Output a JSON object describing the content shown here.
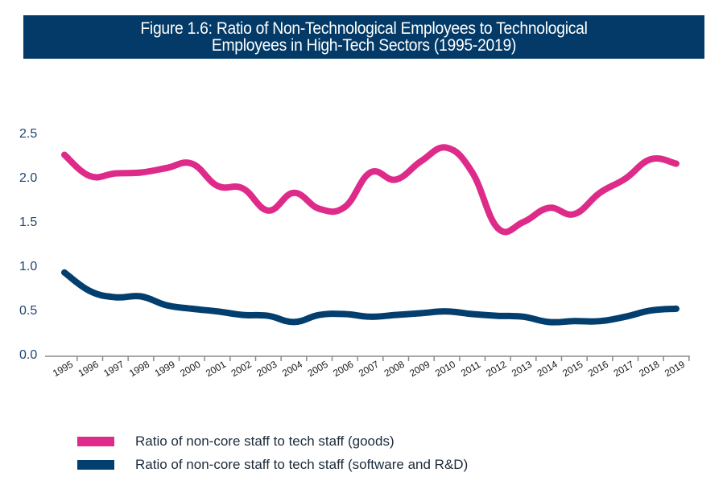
{
  "title": {
    "line1": "Figure 1.6: Ratio of Non-Technological Employees to Technological",
    "line2": "Employees in High-Tech Sectors (1995-2019)"
  },
  "colors": {
    "title_bg": "#033a67",
    "goods": "#de2b8a",
    "software": "#033f6e",
    "axis": "#8a8a8a",
    "tick_label": "#1f4570"
  },
  "legend": [
    {
      "label": "Ratio of non-core staff to tech staff (goods)",
      "color": "#de2b8a"
    },
    {
      "label": "Ratio of non-core staff to tech staff (software and R&D)",
      "color": "#033f6e"
    }
  ],
  "chart_data": {
    "type": "line",
    "title": "Figure 1.6: Ratio of Non-Technological Employees to Technological Employees in High-Tech Sectors (1995-2019)",
    "xlabel": "",
    "ylabel": "",
    "ylim": [
      0,
      2.5
    ],
    "yticks": [
      "0.0",
      "0.5",
      "1.0",
      "1.5",
      "2.0",
      "2.5"
    ],
    "grid": false,
    "legend_position": "bottom-left",
    "x": [
      "1995",
      "1996",
      "1997",
      "1998",
      "1999",
      "2000",
      "2001",
      "2002",
      "2003",
      "2004",
      "2005",
      "2006",
      "2007",
      "2008",
      "2009",
      "2010",
      "2011",
      "2012",
      "2013",
      "2014",
      "2015",
      "2016",
      "2017",
      "2018",
      "2019"
    ],
    "series": [
      {
        "name": "Ratio of non-core staff to tech staff (goods)",
        "values": [
          2.25,
          2.01,
          2.04,
          2.05,
          2.1,
          2.15,
          1.9,
          1.87,
          1.62,
          1.82,
          1.64,
          1.66,
          2.05,
          1.97,
          2.18,
          2.33,
          2.05,
          1.42,
          1.49,
          1.65,
          1.58,
          1.82,
          1.98,
          2.2,
          2.15
        ]
      },
      {
        "name": "Ratio of non-core staff to tech staff (software and R&D)",
        "values": [
          0.92,
          0.71,
          0.64,
          0.65,
          0.55,
          0.51,
          0.48,
          0.44,
          0.43,
          0.36,
          0.44,
          0.45,
          0.42,
          0.44,
          0.46,
          0.48,
          0.45,
          0.43,
          0.42,
          0.36,
          0.37,
          0.37,
          0.42,
          0.49,
          0.51
        ]
      }
    ]
  }
}
